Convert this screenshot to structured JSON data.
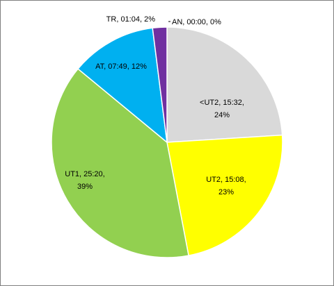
{
  "chart_data": {
    "type": "pie",
    "start_angle_deg": 0,
    "direction": "clockwise",
    "slices": [
      {
        "name": "<UT2",
        "duration": "15:32",
        "percent": 24,
        "color": "#d9d9d9",
        "label_lines": [
          "<UT2, 15:32,",
          "24%"
        ]
      },
      {
        "name": "UT2",
        "duration": "15:08",
        "percent": 23,
        "color": "#ffff00",
        "label_lines": [
          "UT2, 15:08,",
          "23%"
        ]
      },
      {
        "name": "UT1",
        "duration": "25:20",
        "percent": 39,
        "color": "#92d050",
        "label_lines": [
          "UT1, 25:20,",
          "39%"
        ]
      },
      {
        "name": "AT",
        "duration": "07:49",
        "percent": 12,
        "color": "#00b0f0",
        "label_lines": [
          "AT, 07:49, 12%"
        ]
      },
      {
        "name": "TR",
        "duration": "01:04",
        "percent": 2,
        "color": "#7030a0",
        "label_lines": [
          "TR, 01:04, 2%"
        ]
      },
      {
        "name": "AN",
        "duration": "00:00",
        "percent": 0,
        "color": "#ffffff",
        "label_lines": [
          "AN, 00:00, 0%"
        ]
      }
    ]
  }
}
